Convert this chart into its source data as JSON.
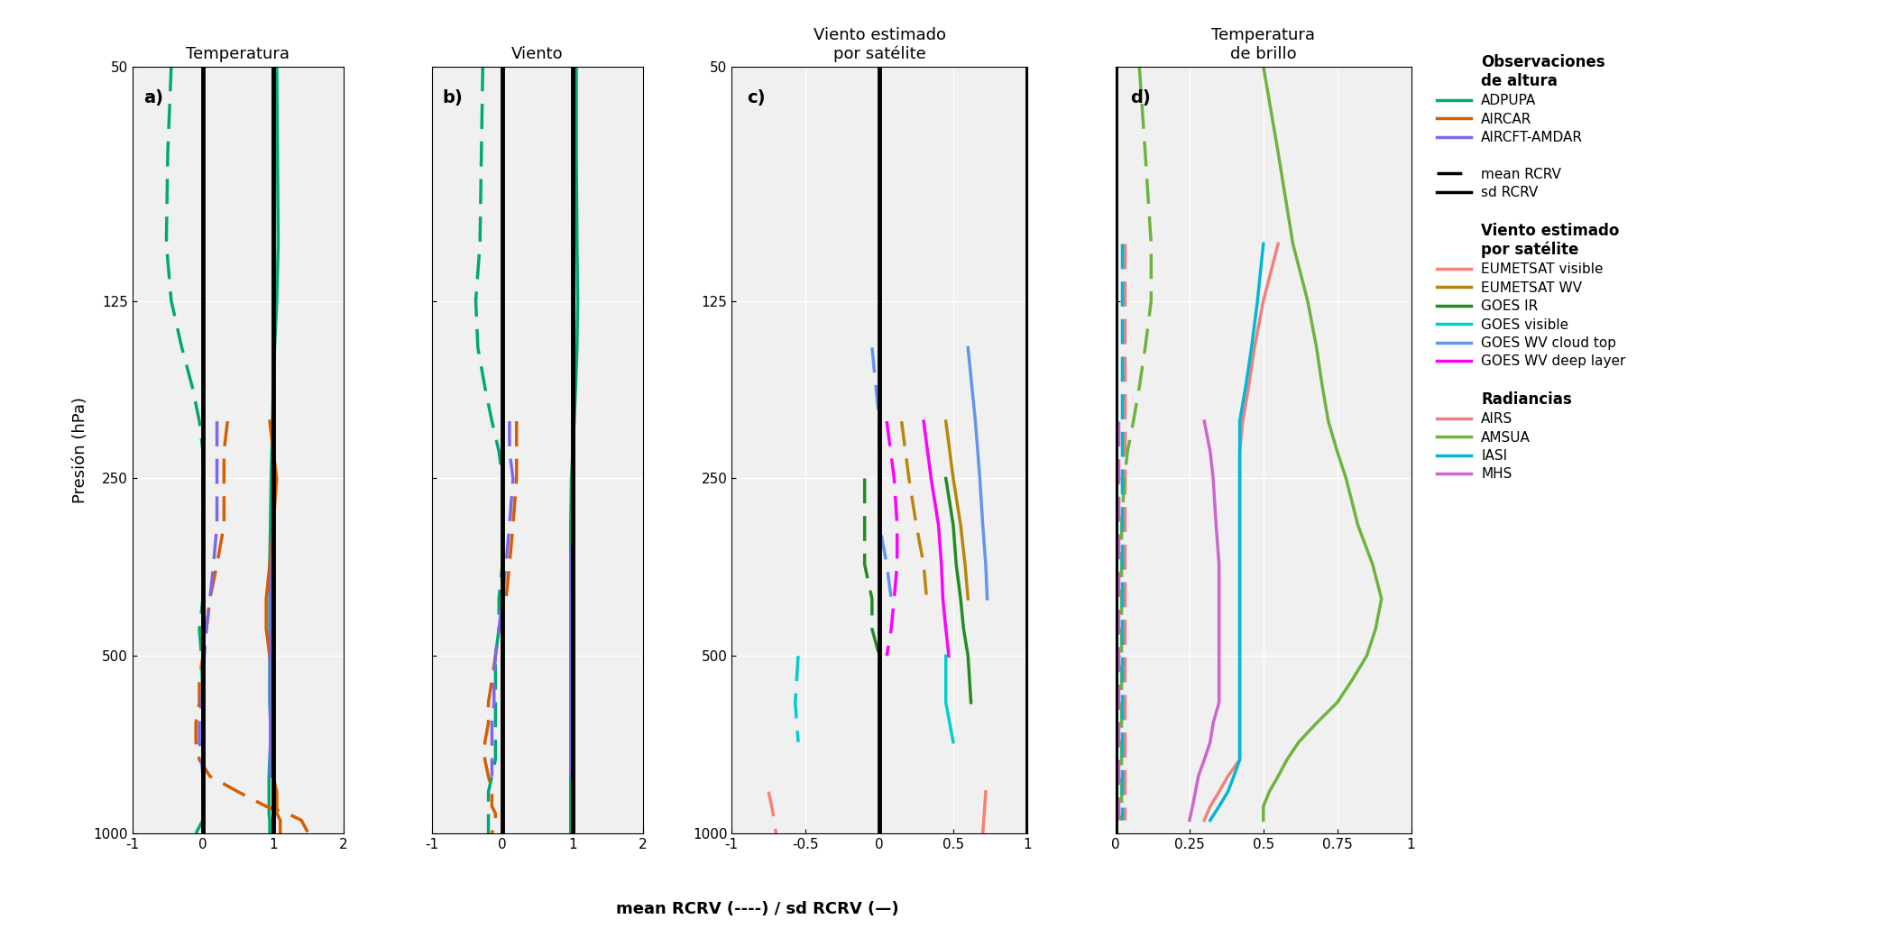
{
  "colors": {
    "ADPUPA": "#00a878",
    "AIRCAR": "#d55e00",
    "AIRCFT_AMDAR": "#7b68ee",
    "EUMETSAT_visible": "#fa8072",
    "EUMETSAT_WV": "#b8860b",
    "GOES_IR": "#228b22",
    "GOES_visible": "#00ced1",
    "GOES_WV_cloud_top": "#6495ed",
    "GOES_WV_deep_layer": "#ff00ff",
    "AIRS": "#f08080",
    "AMSUA": "#6db33f",
    "IASI": "#00b7d4",
    "MHS": "#cc66cc"
  },
  "panel_a_title": "Temperatura",
  "panel_b_title": "Viento",
  "panel_c_title": "Viento estimado\npor satélite",
  "panel_d_title": "Temperatura\nde brillo",
  "xlabel": "mean RCRV (----) / sd RCRV (—)",
  "ylabel": "Presión (hPa)",
  "xlim_ab": [
    -1,
    2
  ],
  "xlim_c": [
    -1.0,
    1.0
  ],
  "xlim_d": [
    0.0,
    1.0
  ],
  "xticks_ab": [
    -1,
    0,
    1,
    2
  ],
  "xticks_c": [
    -1.0,
    -0.5,
    0.0,
    0.5,
    1.0
  ],
  "xticks_d": [
    0.0,
    0.25,
    0.5,
    0.75,
    1.0
  ],
  "ylim": [
    1000,
    50
  ],
  "yticks": [
    50,
    125,
    250,
    500,
    1000
  ],
  "background_color": "#f0f0f0"
}
